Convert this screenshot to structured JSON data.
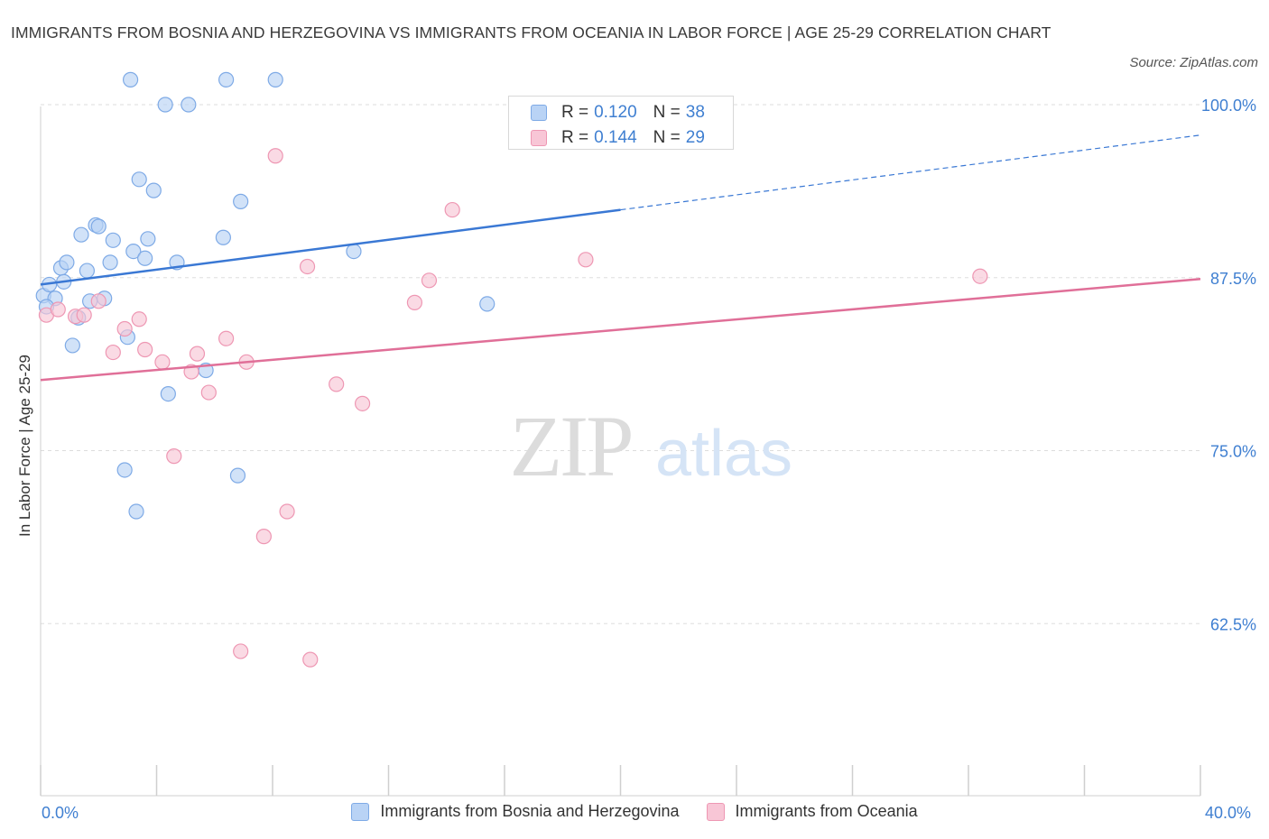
{
  "header": {
    "title": "IMMIGRANTS FROM BOSNIA AND HERZEGOVINA VS IMMIGRANTS FROM OCEANIA IN LABOR FORCE | AGE 25-29 CORRELATION CHART",
    "source": "Source: ZipAtlas.com"
  },
  "watermark": {
    "zip": "ZIP",
    "atlas": "atlas"
  },
  "colors": {
    "blue_fill": "#b9d3f5",
    "blue_stroke": "#7eaae6",
    "blue_line": "#3a78d4",
    "pink_fill": "#f8c6d6",
    "pink_stroke": "#ee97b3",
    "pink_line": "#e06f98",
    "tick_text": "#3f7fd1"
  },
  "legend": {
    "series": [
      {
        "r_label": "R =",
        "r_value": "0.120",
        "n_label": "N =",
        "n_value": "38"
      },
      {
        "r_label": "R =",
        "r_value": "0.144",
        "n_label": "N =",
        "n_value": "29"
      }
    ]
  },
  "chart_data": {
    "type": "scatter",
    "ylabel": "In Labor Force | Age 25-29",
    "xlim": [
      0,
      40
    ],
    "ylim": [
      50,
      100
    ],
    "x_tick_labels": [
      "0.0%",
      "40.0%"
    ],
    "y_ticks": [
      62.5,
      75.0,
      87.5,
      100.0
    ],
    "y_tick_labels": [
      "62.5%",
      "75.0%",
      "87.5%",
      "100.0%"
    ],
    "grid": true,
    "legend_position": "top-center",
    "series": [
      {
        "name": "Immigrants from Bosnia and Herzegovina",
        "color": "#b9d3f5",
        "points": [
          [
            0.1,
            86.2
          ],
          [
            0.3,
            87.0
          ],
          [
            0.5,
            86.0
          ],
          [
            0.7,
            88.2
          ],
          [
            0.9,
            88.6
          ],
          [
            0.8,
            87.2
          ],
          [
            1.1,
            82.6
          ],
          [
            1.3,
            84.6
          ],
          [
            1.4,
            90.6
          ],
          [
            1.6,
            88.0
          ],
          [
            1.7,
            85.8
          ],
          [
            1.9,
            91.3
          ],
          [
            2.0,
            91.2
          ],
          [
            2.2,
            86.0
          ],
          [
            2.4,
            88.6
          ],
          [
            2.5,
            90.2
          ],
          [
            2.9,
            73.6
          ],
          [
            3.0,
            83.2
          ],
          [
            3.1,
            101.8
          ],
          [
            3.3,
            70.6
          ],
          [
            3.2,
            89.4
          ],
          [
            3.4,
            94.6
          ],
          [
            3.6,
            88.9
          ],
          [
            3.7,
            90.3
          ],
          [
            3.9,
            93.8
          ],
          [
            4.3,
            100.0
          ],
          [
            4.4,
            79.1
          ],
          [
            4.7,
            88.6
          ],
          [
            5.1,
            100.0
          ],
          [
            5.7,
            80.8
          ],
          [
            6.3,
            90.4
          ],
          [
            6.4,
            101.8
          ],
          [
            6.8,
            73.2
          ],
          [
            6.9,
            93.0
          ],
          [
            8.1,
            101.8
          ],
          [
            10.8,
            89.4
          ],
          [
            15.4,
            85.6
          ],
          [
            0.2,
            85.4
          ]
        ],
        "trend": {
          "x": [
            0,
            20,
            40
          ],
          "y": [
            87.0,
            92.4,
            97.8
          ],
          "solid_until_x": 20
        }
      },
      {
        "name": "Immigrants from Oceania",
        "color": "#f8c6d6",
        "points": [
          [
            0.2,
            84.8
          ],
          [
            0.6,
            85.2
          ],
          [
            1.2,
            84.7
          ],
          [
            1.5,
            84.8
          ],
          [
            2.0,
            85.8
          ],
          [
            2.5,
            82.1
          ],
          [
            2.9,
            83.8
          ],
          [
            3.4,
            84.5
          ],
          [
            3.6,
            82.3
          ],
          [
            4.2,
            81.4
          ],
          [
            4.6,
            74.6
          ],
          [
            5.2,
            80.7
          ],
          [
            5.4,
            82.0
          ],
          [
            5.8,
            79.2
          ],
          [
            6.4,
            83.1
          ],
          [
            6.9,
            60.5
          ],
          [
            7.1,
            81.4
          ],
          [
            7.7,
            68.8
          ],
          [
            8.1,
            96.3
          ],
          [
            8.5,
            70.6
          ],
          [
            9.2,
            88.3
          ],
          [
            9.3,
            59.9
          ],
          [
            10.2,
            79.8
          ],
          [
            11.1,
            78.4
          ],
          [
            12.9,
            85.7
          ],
          [
            13.4,
            87.3
          ],
          [
            14.2,
            92.4
          ],
          [
            18.8,
            88.8
          ],
          [
            32.4,
            87.6
          ]
        ],
        "trend": {
          "x": [
            0,
            40
          ],
          "y": [
            80.1,
            87.4
          ],
          "solid_until_x": 40
        }
      }
    ]
  }
}
